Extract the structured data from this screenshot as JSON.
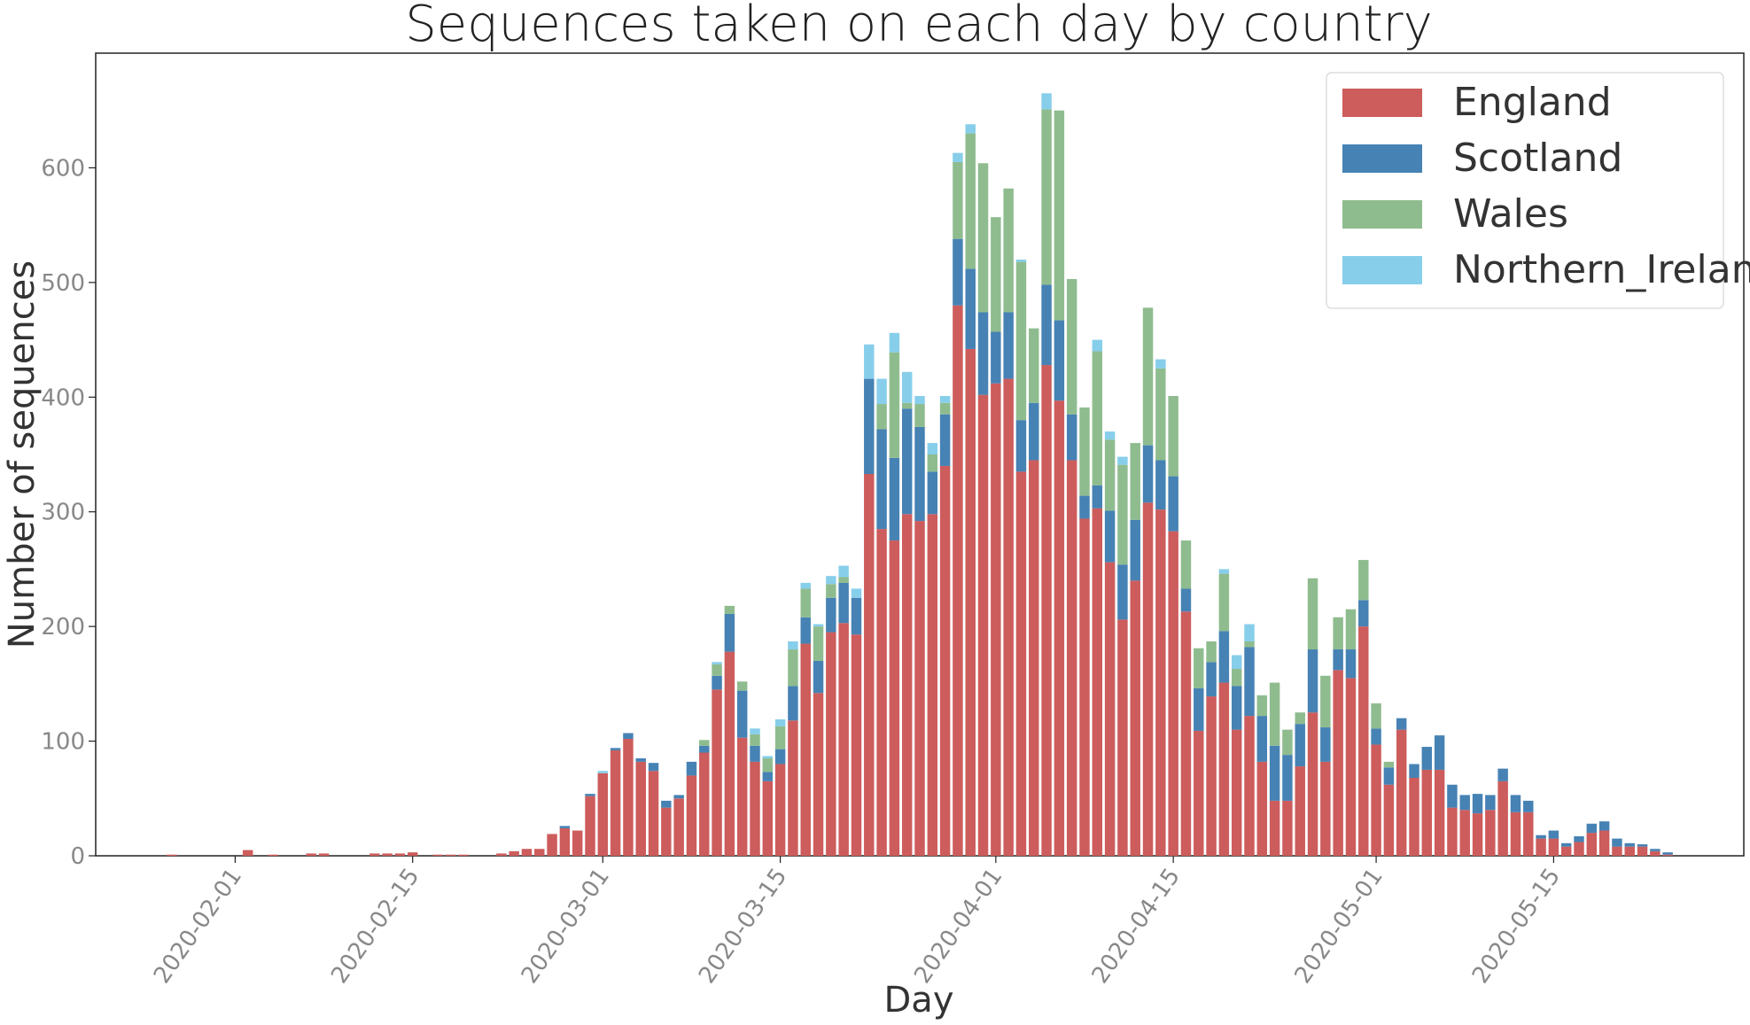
{
  "chart_data": {
    "type": "bar",
    "stacked": true,
    "title": "Sequences taken on each day by country",
    "xlabel": "Day",
    "ylabel": "Number of sequences",
    "ylim": [
      0,
      700
    ],
    "yticks": [
      0,
      100,
      200,
      300,
      400,
      500,
      600
    ],
    "xlim": [
      "2020-01-21",
      "2020-05-30"
    ],
    "xtick_labels": [
      "2020-02-01",
      "2020-02-15",
      "2020-03-01",
      "2020-03-15",
      "2020-04-01",
      "2020-04-15",
      "2020-05-01",
      "2020-05-15"
    ],
    "grid": false,
    "legend_position": "top-right",
    "x": [
      "2020-01-27",
      "2020-01-28",
      "2020-01-29",
      "2020-01-30",
      "2020-01-31",
      "2020-02-01",
      "2020-02-02",
      "2020-02-03",
      "2020-02-04",
      "2020-02-05",
      "2020-02-06",
      "2020-02-07",
      "2020-02-08",
      "2020-02-09",
      "2020-02-10",
      "2020-02-11",
      "2020-02-12",
      "2020-02-13",
      "2020-02-14",
      "2020-02-15",
      "2020-02-16",
      "2020-02-17",
      "2020-02-18",
      "2020-02-19",
      "2020-02-20",
      "2020-02-21",
      "2020-02-22",
      "2020-02-23",
      "2020-02-24",
      "2020-02-25",
      "2020-02-26",
      "2020-02-27",
      "2020-02-28",
      "2020-02-29",
      "2020-03-01",
      "2020-03-02",
      "2020-03-03",
      "2020-03-04",
      "2020-03-05",
      "2020-03-06",
      "2020-03-07",
      "2020-03-08",
      "2020-03-09",
      "2020-03-10",
      "2020-03-11",
      "2020-03-12",
      "2020-03-13",
      "2020-03-14",
      "2020-03-15",
      "2020-03-16",
      "2020-03-17",
      "2020-03-18",
      "2020-03-19",
      "2020-03-20",
      "2020-03-21",
      "2020-03-22",
      "2020-03-23",
      "2020-03-24",
      "2020-03-25",
      "2020-03-26",
      "2020-03-27",
      "2020-03-28",
      "2020-03-29",
      "2020-03-30",
      "2020-03-31",
      "2020-04-01",
      "2020-04-02",
      "2020-04-03",
      "2020-04-04",
      "2020-04-05",
      "2020-04-06",
      "2020-04-07",
      "2020-04-08",
      "2020-04-09",
      "2020-04-10",
      "2020-04-11",
      "2020-04-12",
      "2020-04-13",
      "2020-04-14",
      "2020-04-15",
      "2020-04-16",
      "2020-04-17",
      "2020-04-18",
      "2020-04-19",
      "2020-04-20",
      "2020-04-21",
      "2020-04-22",
      "2020-04-23",
      "2020-04-24",
      "2020-04-25",
      "2020-04-26",
      "2020-04-27",
      "2020-04-28",
      "2020-04-29",
      "2020-04-30",
      "2020-05-01",
      "2020-05-02",
      "2020-05-03",
      "2020-05-04",
      "2020-05-05",
      "2020-05-06",
      "2020-05-07",
      "2020-05-08",
      "2020-05-09",
      "2020-05-10",
      "2020-05-11",
      "2020-05-12",
      "2020-05-13",
      "2020-05-14",
      "2020-05-15",
      "2020-05-16",
      "2020-05-17",
      "2020-05-18",
      "2020-05-19",
      "2020-05-20",
      "2020-05-21",
      "2020-05-22",
      "2020-05-23",
      "2020-05-24"
    ],
    "series": [
      {
        "name": "England",
        "color": "#cd5c5c",
        "values": [
          1,
          0,
          0,
          0,
          0,
          0,
          5,
          0,
          1,
          0,
          0,
          2,
          2,
          0,
          0,
          0,
          2,
          2,
          2,
          3,
          0,
          1,
          1,
          1,
          0,
          0,
          2,
          4,
          6,
          6,
          19,
          24,
          22,
          52,
          72,
          92,
          102,
          82,
          74,
          42,
          50,
          70,
          90,
          145,
          178,
          103,
          82,
          65,
          80,
          118,
          185,
          142,
          195,
          203,
          193,
          333,
          285,
          275,
          298,
          292,
          298,
          340,
          480,
          442,
          402,
          412,
          416,
          335,
          345,
          428,
          397,
          345,
          294,
          303,
          256,
          206,
          240,
          308,
          302,
          283,
          213,
          109,
          139,
          151,
          110,
          122,
          82,
          48,
          48,
          78,
          125,
          82,
          162,
          155,
          200,
          97,
          62,
          110,
          68,
          75,
          75,
          42,
          40,
          37,
          40,
          65,
          38,
          38,
          15,
          15,
          8,
          12,
          20,
          22,
          8,
          8,
          8,
          4,
          1
        ]
      },
      {
        "name": "Scotland",
        "color": "#4682b4",
        "values": [
          0,
          0,
          0,
          0,
          0,
          0,
          0,
          0,
          0,
          0,
          0,
          0,
          0,
          0,
          0,
          0,
          0,
          0,
          0,
          0,
          0,
          0,
          0,
          0,
          0,
          0,
          0,
          0,
          0,
          0,
          0,
          2,
          0,
          2,
          0,
          2,
          5,
          3,
          7,
          6,
          3,
          12,
          6,
          12,
          33,
          41,
          14,
          8,
          13,
          30,
          23,
          28,
          30,
          35,
          32,
          83,
          87,
          72,
          92,
          82,
          37,
          45,
          58,
          70,
          72,
          45,
          58,
          45,
          50,
          70,
          70,
          40,
          20,
          20,
          45,
          48,
          53,
          50,
          43,
          48,
          20,
          37,
          30,
          45,
          38,
          60,
          40,
          48,
          40,
          37,
          55,
          30,
          18,
          25,
          23,
          14,
          15,
          10,
          12,
          20,
          30,
          20,
          13,
          17,
          13,
          11,
          15,
          10,
          3,
          7,
          3,
          5,
          8,
          8,
          7,
          3,
          2,
          2,
          2
        ]
      },
      {
        "name": "Wales",
        "color": "#8fbc8f",
        "values": [
          0,
          0,
          0,
          0,
          0,
          0,
          0,
          0,
          0,
          0,
          0,
          0,
          0,
          0,
          0,
          0,
          0,
          0,
          0,
          0,
          0,
          0,
          0,
          0,
          0,
          0,
          0,
          0,
          0,
          0,
          0,
          0,
          0,
          0,
          0,
          0,
          0,
          0,
          0,
          0,
          0,
          0,
          5,
          10,
          7,
          8,
          10,
          12,
          20,
          32,
          25,
          30,
          12,
          5,
          0,
          0,
          22,
          92,
          5,
          20,
          15,
          10,
          67,
          118,
          130,
          100,
          108,
          138,
          65,
          153,
          183,
          118,
          77,
          117,
          62,
          87,
          67,
          120,
          80,
          70,
          42,
          35,
          18,
          50,
          15,
          5,
          18,
          55,
          22,
          10,
          62,
          45,
          28,
          35,
          35,
          22,
          5,
          0,
          0,
          0,
          0,
          0,
          0,
          0,
          0,
          0,
          0,
          0,
          0,
          0,
          0,
          0,
          0,
          0,
          0,
          0,
          0,
          0,
          0
        ]
      },
      {
        "name": "Northern_Ireland",
        "color": "#87ceeb",
        "values": [
          0,
          0,
          0,
          0,
          0,
          0,
          0,
          0,
          0,
          0,
          0,
          0,
          0,
          0,
          0,
          0,
          0,
          0,
          0,
          0,
          0,
          0,
          0,
          0,
          0,
          0,
          0,
          0,
          0,
          0,
          0,
          0,
          0,
          0,
          2,
          0,
          0,
          0,
          0,
          0,
          0,
          0,
          0,
          2,
          0,
          0,
          5,
          2,
          6,
          7,
          5,
          2,
          7,
          10,
          8,
          30,
          22,
          17,
          27,
          7,
          10,
          6,
          8,
          8,
          0,
          0,
          0,
          2,
          0,
          14,
          0,
          0,
          0,
          10,
          7,
          7,
          0,
          0,
          8,
          0,
          0,
          0,
          0,
          4,
          12,
          15,
          0,
          0,
          0,
          0,
          0,
          0,
          0,
          0,
          0,
          0,
          0,
          0,
          0,
          0,
          0,
          0,
          0,
          0,
          0,
          0,
          0,
          0,
          0,
          0,
          0,
          0,
          0,
          0,
          0,
          0,
          0,
          0,
          0
        ]
      }
    ]
  }
}
